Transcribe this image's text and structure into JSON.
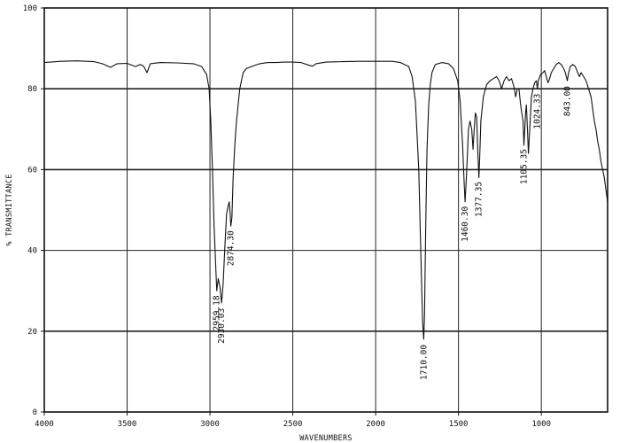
{
  "chart_data": {
    "type": "line",
    "xlabel": "WAVENUMBERS",
    "ylabel": "% TRANSMITTANCE",
    "xlim": [
      4000,
      600
    ],
    "ylim": [
      0,
      100
    ],
    "x_ticks": [
      4000,
      3500,
      3000,
      2500,
      2000,
      1500,
      1000
    ],
    "y_ticks": [
      0,
      20,
      40,
      60,
      80,
      100
    ],
    "grid": true,
    "peak_labels": [
      {
        "x": 2959.18,
        "text": "2959.18"
      },
      {
        "x": 2930.03,
        "text": "2930.03"
      },
      {
        "x": 2874.3,
        "text": "2874.30"
      },
      {
        "x": 1710.0,
        "text": "1710.00"
      },
      {
        "x": 1460.3,
        "text": "1460.30"
      },
      {
        "x": 1377.35,
        "text": "1377.35"
      },
      {
        "x": 1105.35,
        "text": "1105.35"
      },
      {
        "x": 1024.33,
        "text": "1024.33"
      },
      {
        "x": 843.0,
        "text": "843.00"
      }
    ],
    "series": [
      {
        "points": [
          [
            4000,
            86.5
          ],
          [
            3900,
            86.8
          ],
          [
            3800,
            86.9
          ],
          [
            3700,
            86.7
          ],
          [
            3650,
            86.2
          ],
          [
            3600,
            85.3
          ],
          [
            3560,
            86.2
          ],
          [
            3500,
            86.3
          ],
          [
            3450,
            85.5
          ],
          [
            3420,
            86.0
          ],
          [
            3400,
            85.6
          ],
          [
            3380,
            84.0
          ],
          [
            3360,
            86.2
          ],
          [
            3300,
            86.5
          ],
          [
            3200,
            86.4
          ],
          [
            3100,
            86.2
          ],
          [
            3050,
            85.5
          ],
          [
            3020,
            83.5
          ],
          [
            3005,
            80
          ],
          [
            2995,
            72
          ],
          [
            2985,
            60
          ],
          [
            2975,
            46
          ],
          [
            2965,
            36
          ],
          [
            2959,
            30
          ],
          [
            2950,
            33
          ],
          [
            2940,
            31
          ],
          [
            2930,
            27
          ],
          [
            2920,
            32
          ],
          [
            2910,
            41
          ],
          [
            2900,
            49
          ],
          [
            2890,
            51
          ],
          [
            2884,
            52
          ],
          [
            2878,
            49
          ],
          [
            2874,
            46
          ],
          [
            2868,
            48
          ],
          [
            2860,
            58
          ],
          [
            2850,
            66
          ],
          [
            2840,
            72
          ],
          [
            2820,
            80
          ],
          [
            2800,
            84
          ],
          [
            2780,
            85
          ],
          [
            2750,
            85.5
          ],
          [
            2700,
            86.2
          ],
          [
            2650,
            86.5
          ],
          [
            2600,
            86.5
          ],
          [
            2550,
            86.6
          ],
          [
            2500,
            86.6
          ],
          [
            2450,
            86.5
          ],
          [
            2400,
            85.8
          ],
          [
            2380,
            85.6
          ],
          [
            2360,
            86.2
          ],
          [
            2300,
            86.6
          ],
          [
            2200,
            86.7
          ],
          [
            2100,
            86.8
          ],
          [
            2000,
            86.8
          ],
          [
            1900,
            86.8
          ],
          [
            1850,
            86.5
          ],
          [
            1800,
            85.5
          ],
          [
            1780,
            83
          ],
          [
            1760,
            77
          ],
          [
            1740,
            60
          ],
          [
            1725,
            35
          ],
          [
            1716,
            22
          ],
          [
            1710,
            18
          ],
          [
            1705,
            24
          ],
          [
            1698,
            45
          ],
          [
            1690,
            65
          ],
          [
            1680,
            76
          ],
          [
            1670,
            81
          ],
          [
            1660,
            84
          ],
          [
            1640,
            86
          ],
          [
            1600,
            86.5
          ],
          [
            1560,
            86.2
          ],
          [
            1530,
            85
          ],
          [
            1505,
            82
          ],
          [
            1490,
            77
          ],
          [
            1475,
            66
          ],
          [
            1465,
            56
          ],
          [
            1460,
            52
          ],
          [
            1455,
            56
          ],
          [
            1447,
            63
          ],
          [
            1440,
            70
          ],
          [
            1430,
            72
          ],
          [
            1420,
            70
          ],
          [
            1412,
            65
          ],
          [
            1405,
            70
          ],
          [
            1398,
            74
          ],
          [
            1390,
            73
          ],
          [
            1383,
            64
          ],
          [
            1377,
            58
          ],
          [
            1372,
            63
          ],
          [
            1365,
            72
          ],
          [
            1350,
            78
          ],
          [
            1330,
            81
          ],
          [
            1310,
            82
          ],
          [
            1290,
            82.5
          ],
          [
            1270,
            83
          ],
          [
            1255,
            82
          ],
          [
            1240,
            80
          ],
          [
            1225,
            82
          ],
          [
            1210,
            83
          ],
          [
            1195,
            82
          ],
          [
            1180,
            82.5
          ],
          [
            1165,
            80.5
          ],
          [
            1155,
            78
          ],
          [
            1145,
            80
          ],
          [
            1135,
            80
          ],
          [
            1125,
            76
          ],
          [
            1118,
            74
          ],
          [
            1110,
            72
          ],
          [
            1105,
            66
          ],
          [
            1100,
            70
          ],
          [
            1095,
            74
          ],
          [
            1090,
            76
          ],
          [
            1084,
            70
          ],
          [
            1078,
            64
          ],
          [
            1070,
            70
          ],
          [
            1060,
            78
          ],
          [
            1050,
            80
          ],
          [
            1040,
            81.5
          ],
          [
            1030,
            82
          ],
          [
            1024,
            80
          ],
          [
            1018,
            82
          ],
          [
            1005,
            83.5
          ],
          [
            990,
            84
          ],
          [
            980,
            84.5
          ],
          [
            970,
            83
          ],
          [
            960,
            81.5
          ],
          [
            950,
            82.5
          ],
          [
            940,
            84
          ],
          [
            925,
            85
          ],
          [
            910,
            86
          ],
          [
            895,
            86.5
          ],
          [
            880,
            86
          ],
          [
            865,
            85
          ],
          [
            855,
            84
          ],
          [
            843,
            82
          ],
          [
            835,
            84
          ],
          [
            825,
            85.5
          ],
          [
            810,
            86
          ],
          [
            795,
            85.5
          ],
          [
            780,
            84
          ],
          [
            770,
            83
          ],
          [
            760,
            84
          ],
          [
            745,
            83
          ],
          [
            730,
            82
          ],
          [
            715,
            80
          ],
          [
            700,
            78
          ],
          [
            690,
            75
          ],
          [
            680,
            72
          ],
          [
            670,
            70
          ],
          [
            660,
            67
          ],
          [
            650,
            65
          ],
          [
            640,
            62
          ],
          [
            630,
            60
          ],
          [
            620,
            58
          ],
          [
            610,
            55
          ],
          [
            600,
            52
          ]
        ]
      }
    ]
  }
}
